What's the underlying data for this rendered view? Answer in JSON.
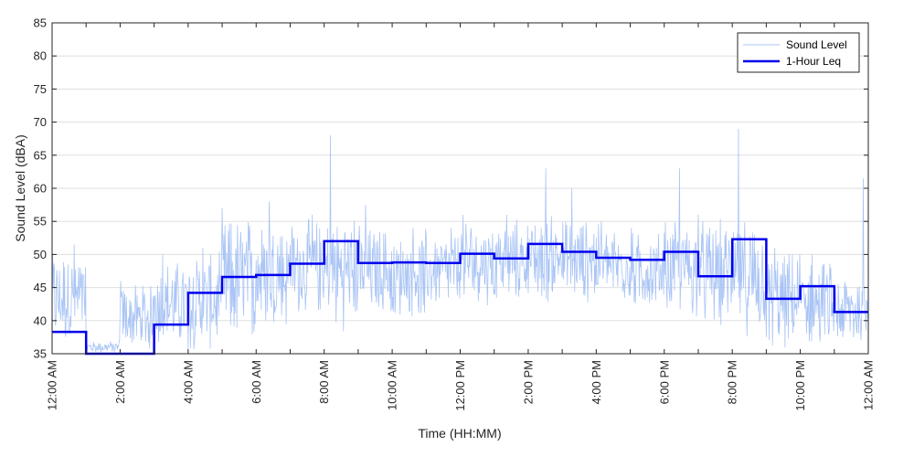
{
  "chart_data": {
    "type": "line",
    "title": "",
    "xlabel": "Time (HH:MM)",
    "ylabel": "Sound Level (dBA)",
    "ylim": [
      35,
      85
    ],
    "xlim_hours": [
      0,
      24
    ],
    "y_ticks": [
      35,
      40,
      45,
      50,
      55,
      60,
      65,
      70,
      75,
      80,
      85
    ],
    "x_ticks": [
      {
        "hour": 0,
        "label": "12:00 AM"
      },
      {
        "hour": 2,
        "label": "2:00 AM"
      },
      {
        "hour": 4,
        "label": "4:00 AM"
      },
      {
        "hour": 6,
        "label": "6:00 AM"
      },
      {
        "hour": 8,
        "label": "8:00 AM"
      },
      {
        "hour": 10,
        "label": "10:00 AM"
      },
      {
        "hour": 12,
        "label": "12:00 PM"
      },
      {
        "hour": 14,
        "label": "2:00 PM"
      },
      {
        "hour": 16,
        "label": "4:00 PM"
      },
      {
        "hour": 18,
        "label": "6:00 PM"
      },
      {
        "hour": 20,
        "label": "8:00 PM"
      },
      {
        "hour": 22,
        "label": "10:00 PM"
      },
      {
        "hour": 24,
        "label": "12:00 AM"
      }
    ],
    "grid": "horizontal",
    "legend_position": "top-right",
    "series": [
      {
        "name": "Sound Level",
        "color": "#a9c4f5",
        "style": "thin-line",
        "hourly_approx": [
          {
            "hour": 0,
            "min": 35,
            "max": 51.5,
            "peak": 51.5
          },
          {
            "hour": 1,
            "min": 35,
            "max": 37,
            "peak": 37
          },
          {
            "hour": 2,
            "min": 35,
            "max": 46,
            "peak": 46
          },
          {
            "hour": 3,
            "min": 35,
            "max": 50,
            "peak": 50
          },
          {
            "hour": 4,
            "min": 35,
            "max": 51,
            "peak": 51
          },
          {
            "hour": 5,
            "min": 35,
            "max": 57,
            "peak": 57
          },
          {
            "hour": 6,
            "min": 37,
            "max": 57,
            "peak": 58
          },
          {
            "hour": 7,
            "min": 40,
            "max": 56,
            "peak": 56
          },
          {
            "hour": 8,
            "min": 38,
            "max": 57,
            "peak": 68
          },
          {
            "hour": 9,
            "min": 40,
            "max": 55,
            "peak": 57.5
          },
          {
            "hour": 10,
            "min": 40,
            "max": 54,
            "peak": 54
          },
          {
            "hour": 11,
            "min": 41,
            "max": 54,
            "peak": 54
          },
          {
            "hour": 12,
            "min": 42,
            "max": 56,
            "peak": 56
          },
          {
            "hour": 13,
            "min": 42,
            "max": 56,
            "peak": 56
          },
          {
            "hour": 14,
            "min": 42,
            "max": 57,
            "peak": 63
          },
          {
            "hour": 15,
            "min": 42,
            "max": 56,
            "peak": 60
          },
          {
            "hour": 16,
            "min": 42,
            "max": 55,
            "peak": 55
          },
          {
            "hour": 17,
            "min": 41,
            "max": 54,
            "peak": 54
          },
          {
            "hour": 18,
            "min": 40,
            "max": 56,
            "peak": 63
          },
          {
            "hour": 19,
            "min": 38,
            "max": 56,
            "peak": 56
          },
          {
            "hour": 20,
            "min": 37,
            "max": 56,
            "peak": 69
          },
          {
            "hour": 21,
            "min": 35,
            "max": 51,
            "peak": 51
          },
          {
            "hour": 22,
            "min": 35,
            "max": 50,
            "peak": 50
          },
          {
            "hour": 23,
            "min": 35,
            "max": 48,
            "peak": 61.5
          }
        ]
      },
      {
        "name": "1-Hour Leq",
        "color": "#0000ee",
        "style": "step",
        "x_hours": [
          0,
          1,
          2,
          3,
          4,
          5,
          6,
          7,
          8,
          9,
          10,
          11,
          12,
          13,
          14,
          15,
          16,
          17,
          18,
          19,
          20,
          21,
          22,
          23
        ],
        "values": [
          38.3,
          34,
          34,
          39.4,
          44.2,
          46.6,
          46.9,
          48.6,
          52.0,
          48.7,
          48.8,
          48.7,
          50.1,
          49.4,
          51.6,
          50.4,
          49.5,
          49.2,
          50.4,
          46.7,
          52.3,
          43.3,
          45.2,
          41.3
        ]
      }
    ]
  }
}
